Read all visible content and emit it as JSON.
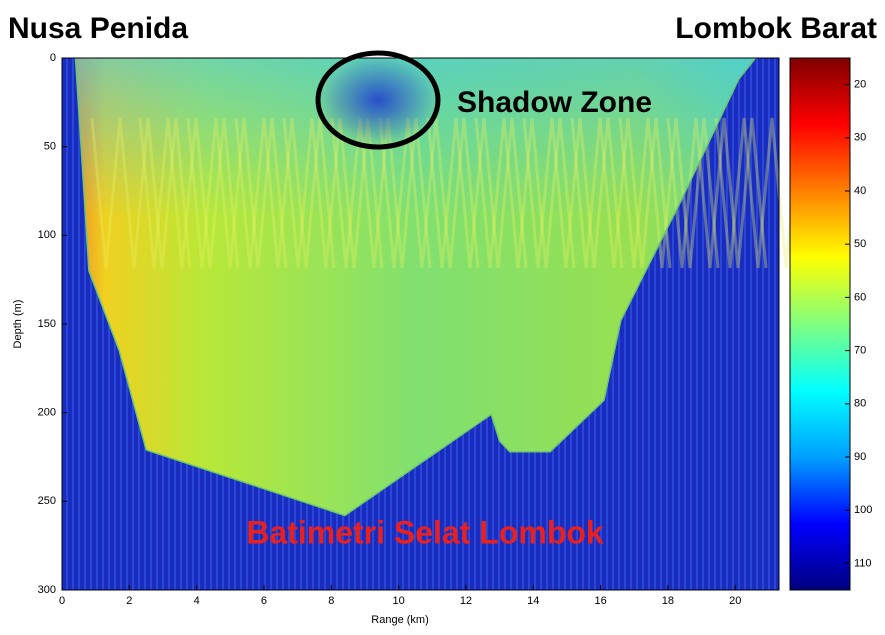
{
  "chart_data": {
    "type": "heatmap",
    "title_left": "Nusa Penida",
    "title_right": "Lombok Barat",
    "annotation": "Shadow Zone",
    "label": "Batimetri Selat Lombok",
    "x_label": "Range (km)",
    "y_label": "Depth (m)",
    "xlim": [
      0,
      21.3
    ],
    "xticks": [
      0,
      2,
      4,
      6,
      8,
      10,
      12,
      14,
      16,
      18,
      20
    ],
    "ylim": [
      0,
      300
    ],
    "yticks": [
      0,
      50,
      100,
      150,
      200,
      250,
      300
    ],
    "y_inverted": true,
    "clim": [
      15,
      115
    ],
    "cticks": [
      20,
      30,
      40,
      50,
      60,
      70,
      80,
      90,
      100,
      110
    ],
    "colormap": "jet",
    "colormap_reversed": true,
    "bathymetry": {
      "x": [
        0.4,
        0.8,
        1.7,
        2.5,
        8.4,
        12.75,
        13.0,
        13.3,
        14.5,
        16.1,
        16.6,
        18.4,
        20.1,
        20.6
      ],
      "depth": [
        0,
        120,
        165,
        221,
        258,
        201,
        216,
        222,
        222,
        193,
        148,
        80,
        12,
        0
      ]
    }
  }
}
